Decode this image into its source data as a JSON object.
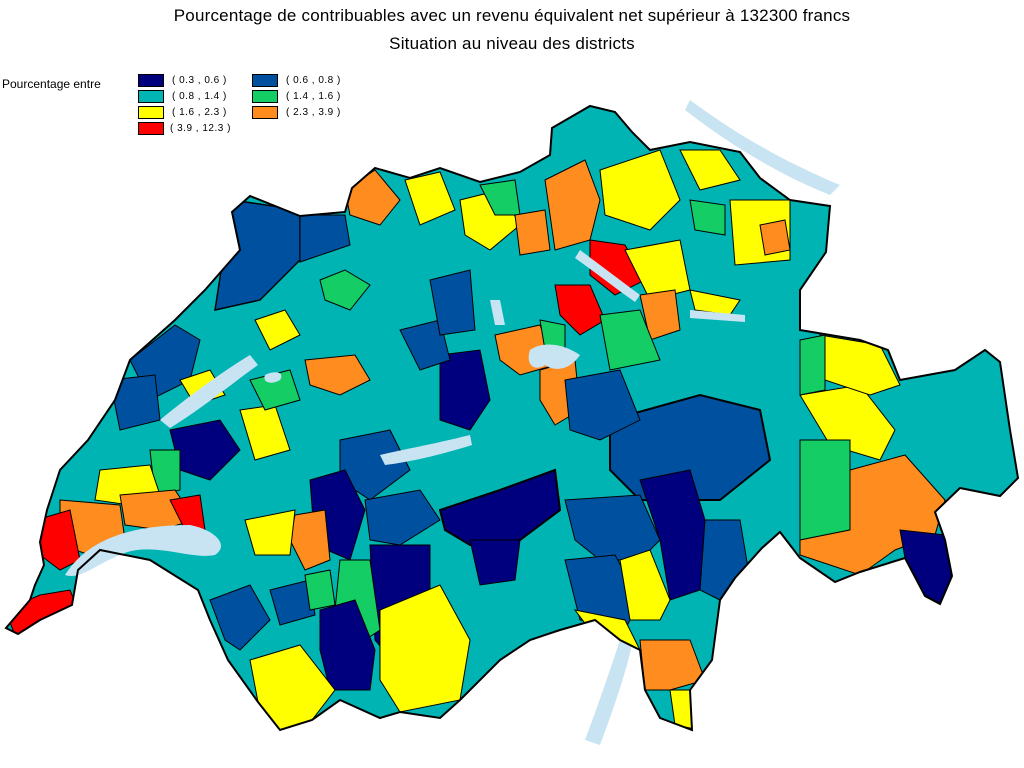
{
  "title": "Pourcentage de contribuables avec un revenu équivalent net supérieur à 132300 francs",
  "subtitle": "Situation au niveau des districts",
  "legend": {
    "label": "Pourcentage entre",
    "classes": [
      {
        "range": "( 0.3 , 0.6 )",
        "color": "#00007f"
      },
      {
        "range": "( 0.6 , 0.8 )",
        "color": "#0050a0"
      },
      {
        "range": "( 0.8 , 1.4 )",
        "color": "#00b4b4"
      },
      {
        "range": "( 1.4 , 1.6 )",
        "color": "#14cd64"
      },
      {
        "range": "( 1.6 , 2.3 )",
        "color": "#ffff00"
      },
      {
        "range": "( 2.3 , 3.9 )",
        "color": "#ff8c1e"
      },
      {
        "range": "( 3.9 , 12.3 )",
        "color": "#ff0000"
      }
    ]
  },
  "colors": {
    "lake": "#c8e4f2",
    "border": "#000000"
  }
}
